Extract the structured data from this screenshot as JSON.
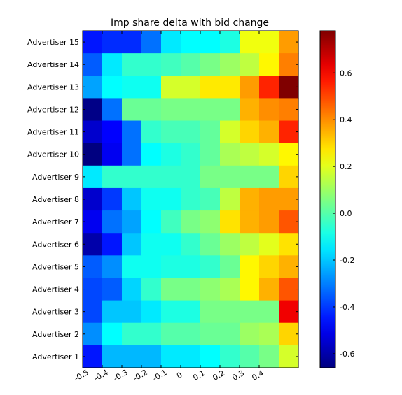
{
  "chart_data": {
    "type": "heatmap",
    "title": "Imp share delta with bid change",
    "xlabel": "",
    "ylabel": "",
    "x_ticks": [
      "-0.5",
      "-0.4",
      "-0.3",
      "-0.2",
      "-0.1",
      "0",
      "0.1",
      "0.2",
      "0.3",
      "0.4"
    ],
    "rows": [
      "Advertiser 15",
      "Advertiser 14",
      "Advertiser 13",
      "Advertiser 12",
      "Advertiser 11",
      "Advertiser 10",
      "Advertiser 9",
      "Advertiser 8",
      "Advertiser 7",
      "Advertiser 6",
      "Advertiser 5",
      "Advertiser 4",
      "Advertiser 3",
      "Advertiser 2",
      "Advertiser 1"
    ],
    "values": [
      [
        -0.45,
        -0.42,
        -0.42,
        -0.32,
        -0.15,
        -0.12,
        -0.12,
        -0.08,
        0.22,
        0.22,
        0.38
      ],
      [
        -0.35,
        -0.15,
        -0.05,
        -0.05,
        -0.03,
        0.0,
        0.05,
        0.1,
        0.15,
        0.25,
        0.42
      ],
      [
        -0.25,
        -0.12,
        -0.1,
        -0.1,
        0.18,
        0.18,
        0.27,
        0.27,
        0.38,
        0.55,
        0.78
      ],
      [
        -0.65,
        -0.32,
        0.03,
        0.03,
        0.05,
        0.05,
        0.05,
        0.05,
        0.35,
        0.4,
        0.42
      ],
      [
        -0.55,
        -0.48,
        -0.32,
        -0.05,
        -0.02,
        -0.02,
        0.02,
        0.18,
        0.3,
        0.35,
        0.55
      ],
      [
        -0.68,
        -0.5,
        -0.32,
        -0.12,
        -0.08,
        -0.05,
        0.02,
        0.12,
        0.15,
        0.18,
        0.25
      ],
      [
        -0.15,
        -0.05,
        -0.05,
        -0.05,
        -0.05,
        -0.05,
        0.05,
        0.05,
        0.05,
        0.05,
        0.3
      ],
      [
        -0.55,
        -0.4,
        -0.2,
        -0.1,
        -0.1,
        -0.05,
        -0.02,
        0.15,
        0.35,
        0.38,
        0.38
      ],
      [
        -0.5,
        -0.32,
        -0.25,
        -0.12,
        -0.03,
        0.05,
        0.08,
        0.28,
        0.35,
        0.38,
        0.48
      ],
      [
        -0.6,
        -0.45,
        -0.2,
        -0.1,
        -0.1,
        -0.05,
        0.03,
        0.1,
        0.15,
        0.2,
        0.28
      ],
      [
        -0.35,
        -0.28,
        -0.1,
        -0.1,
        -0.08,
        -0.08,
        -0.05,
        0.03,
        0.25,
        0.3,
        0.35
      ],
      [
        -0.38,
        -0.35,
        -0.18,
        -0.05,
        0.05,
        0.05,
        0.08,
        0.12,
        0.25,
        0.35,
        0.48
      ],
      [
        -0.38,
        -0.2,
        -0.2,
        -0.15,
        -0.08,
        -0.08,
        0.05,
        0.05,
        0.05,
        0.05,
        0.62
      ],
      [
        -0.28,
        -0.12,
        -0.05,
        -0.05,
        0.0,
        0.0,
        0.03,
        0.03,
        0.1,
        0.12,
        0.3
      ],
      [
        -0.45,
        -0.22,
        -0.22,
        -0.22,
        -0.15,
        -0.15,
        -0.12,
        -0.05,
        0.0,
        0.05,
        0.18
      ]
    ],
    "colorbar": {
      "range": [
        -0.66,
        0.78
      ],
      "ticks": [
        "-0.6",
        "-0.4",
        "-0.2",
        "0.0",
        "0.2",
        "0.4",
        "0.6"
      ],
      "tick_values": [
        -0.6,
        -0.4,
        -0.2,
        0.0,
        0.2,
        0.4,
        0.6
      ],
      "colormap": "jet"
    },
    "grid": false,
    "legend": "none"
  }
}
